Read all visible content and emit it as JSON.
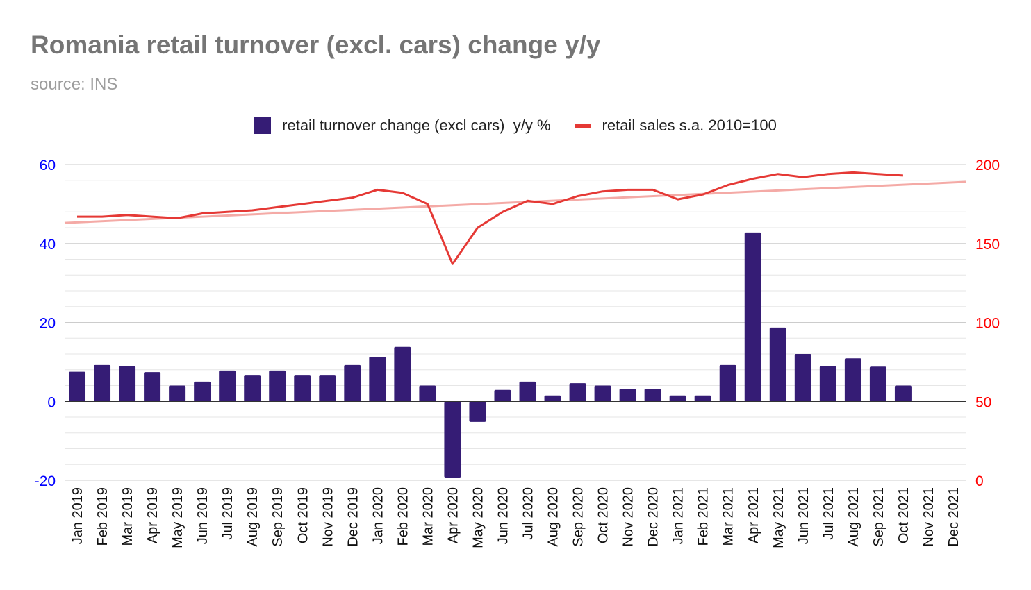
{
  "title": "Romania retail turnover (excl. cars) change y/y",
  "subtitle": "source: INS",
  "colors": {
    "bar": "#351c75",
    "line": "#e53935",
    "trend": "#f4aaa6",
    "left_axis": "#0000ff",
    "right_axis": "#ff0000",
    "grid": "#cccccc"
  },
  "legend": [
    {
      "label": "retail turnover change (excl cars)  y/y %",
      "kind": "bar"
    },
    {
      "label": "retail sales s.a. 2010=100",
      "kind": "line"
    }
  ],
  "chart_data": {
    "type": "bar",
    "categories": [
      "Jan 2019",
      "Feb 2019",
      "Mar 2019",
      "Apr 2019",
      "May 2019",
      "Jun 2019",
      "Jul 2019",
      "Aug 2019",
      "Sep 2019",
      "Oct 2019",
      "Nov 2019",
      "Dec 2019",
      "Jan 2020",
      "Feb 2020",
      "Mar 2020",
      "Apr 2020",
      "May 2020",
      "Jun 2020",
      "Jul 2020",
      "Aug 2020",
      "Sep 2020",
      "Oct 2020",
      "Nov 2020",
      "Dec 2020",
      "Jan 2021",
      "Feb 2021",
      "Mar 2021",
      "Apr 2021",
      "May 2021",
      "Jun 2021",
      "Jul 2021",
      "Aug 2021",
      "Sep 2021",
      "Oct 2021",
      "Nov 2021",
      "Dec 2021"
    ],
    "series": [
      {
        "name": "retail turnover change (excl cars)  y/y %",
        "type": "bar",
        "axis": "left",
        "values": [
          7.5,
          9.2,
          8.9,
          7.4,
          4.0,
          5.0,
          7.8,
          6.7,
          7.8,
          6.7,
          6.7,
          9.2,
          11.3,
          13.8,
          4.0,
          -19.3,
          -5.2,
          2.9,
          5.0,
          1.5,
          4.6,
          4.0,
          3.2,
          3.2,
          1.5,
          1.5,
          9.2,
          42.8,
          18.7,
          12.0,
          8.9,
          10.9,
          8.8,
          4.0,
          null,
          null
        ]
      },
      {
        "name": "retail sales s.a. 2010=100",
        "type": "line",
        "axis": "right",
        "values": [
          167,
          167,
          168,
          167,
          166,
          169,
          170,
          171,
          173,
          175,
          177,
          179,
          184,
          182,
          175,
          137,
          160,
          170,
          177,
          175,
          180,
          183,
          184,
          184,
          178,
          181,
          187,
          191,
          194,
          192,
          194,
          195,
          194,
          193,
          null,
          null
        ]
      }
    ],
    "trendline": {
      "series": "retail sales s.a. 2010=100",
      "type": "linear",
      "start": 163,
      "end": 189
    },
    "y_left": {
      "ticks": [
        60,
        40,
        20,
        0,
        -20
      ],
      "range": [
        -20,
        60
      ]
    },
    "y_right": {
      "ticks": [
        200,
        150,
        100,
        50,
        0
      ],
      "range": [
        0,
        200
      ]
    },
    "grid": true,
    "legend_position": "top"
  }
}
